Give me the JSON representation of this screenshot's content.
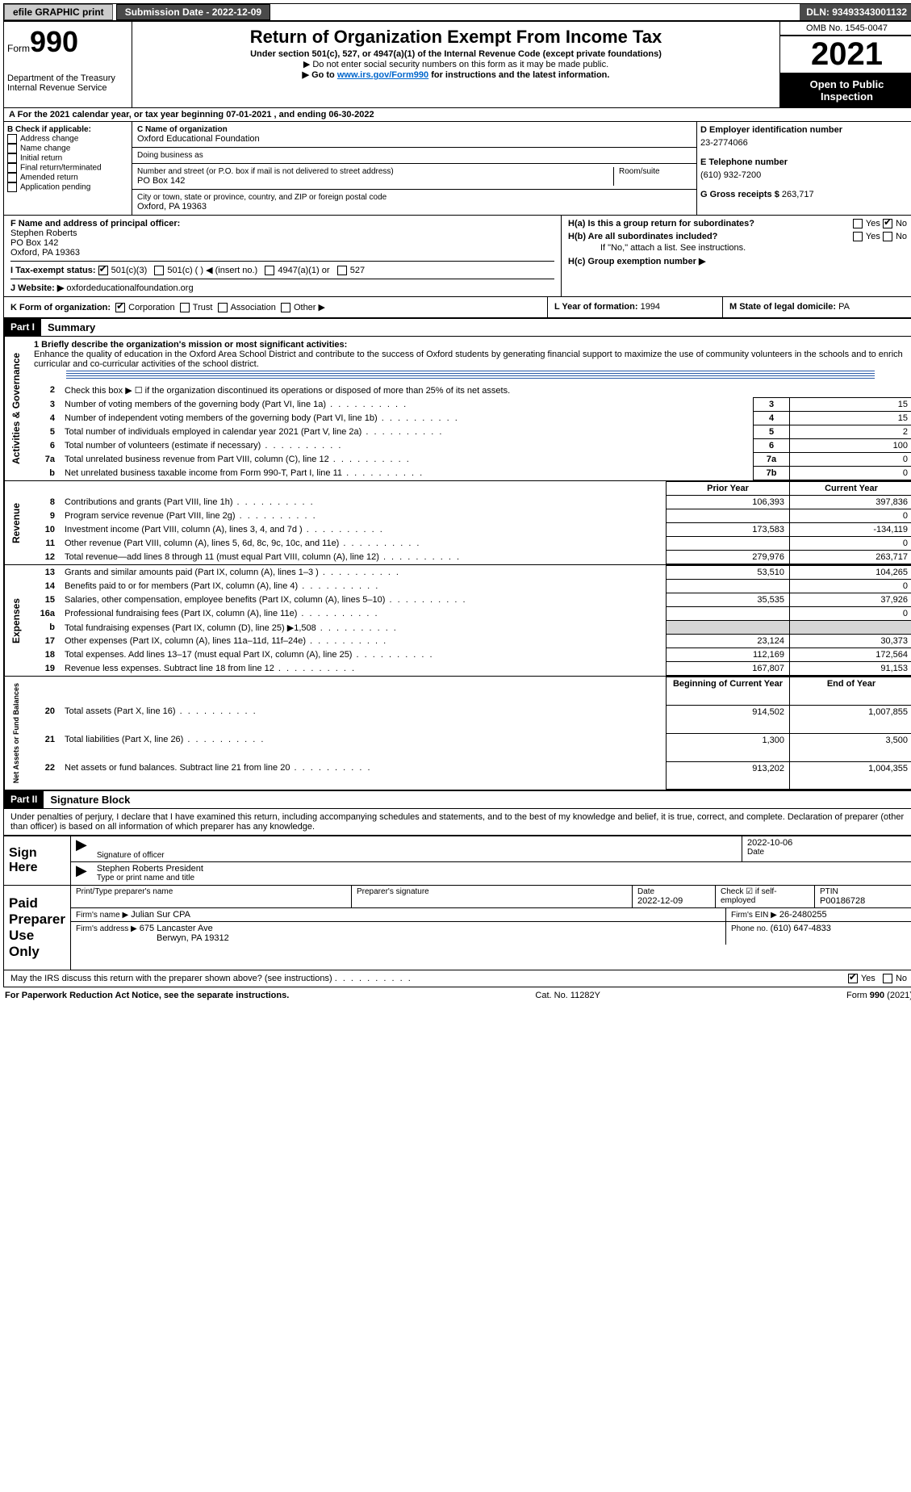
{
  "top_bar": {
    "efile": "efile GRAPHIC print",
    "submission_label": "Submission Date - 2022-12-09",
    "dln": "DLN: 93493343001132"
  },
  "header": {
    "form_word": "Form",
    "form_num": "990",
    "title": "Return of Organization Exempt From Income Tax",
    "subtitle": "Under section 501(c), 527, or 4947(a)(1) of the Internal Revenue Code (except private foundations)",
    "note1": "▶ Do not enter social security numbers on this form as it may be made public.",
    "note2_pre": "▶ Go to ",
    "note2_link": "www.irs.gov/Form990",
    "note2_post": " for instructions and the latest information.",
    "dept1": "Department of the Treasury",
    "dept2": "Internal Revenue Service",
    "omb": "OMB No. 1545-0047",
    "year": "2021",
    "open_pub": "Open to Public Inspection"
  },
  "line_a": "A For the 2021 calendar year, or tax year beginning 07-01-2021   , and ending 06-30-2022",
  "box_b": {
    "title": "B Check if applicable:",
    "items": [
      "Address change",
      "Name change",
      "Initial return",
      "Final return/terminated",
      "Amended return",
      "Application pending"
    ]
  },
  "box_c": {
    "label_name": "C Name of organization",
    "org_name": "Oxford Educational Foundation",
    "dba_label": "Doing business as",
    "dba": "",
    "addr_label": "Number and street (or P.O. box if mail is not delivered to street address)",
    "room_label": "Room/suite",
    "addr": "PO Box 142",
    "city_label": "City or town, state or province, country, and ZIP or foreign postal code",
    "city": "Oxford, PA  19363"
  },
  "box_d": {
    "label": "D Employer identification number",
    "ein": "23-2774066"
  },
  "box_e": {
    "label": "E Telephone number",
    "phone": "(610) 932-7200"
  },
  "box_g": {
    "label": "G Gross receipts $",
    "amount": "263,717"
  },
  "box_f": {
    "label": "F  Name and address of principal officer:",
    "name": "Stephen Roberts",
    "addr1": "PO Box 142",
    "addr2": "Oxford, PA  19363"
  },
  "box_h": {
    "a_label": "H(a)  Is this a group return for subordinates?",
    "a_yes": "Yes",
    "a_no": "No",
    "b_label": "H(b)  Are all subordinates included?",
    "b_yes": "Yes",
    "b_no": "No",
    "b_note": "If \"No,\" attach a list. See instructions.",
    "c_label": "H(c)  Group exemption number ▶"
  },
  "box_i": {
    "label": "I  Tax-exempt status:",
    "o1": "501(c)(3)",
    "o2": "501(c) (  ) ◀ (insert no.)",
    "o3": "4947(a)(1) or",
    "o4": "527"
  },
  "box_j": {
    "label": "J  Website: ▶",
    "url": "oxfordeducationalfoundation.org"
  },
  "box_k": {
    "label": "K Form of organization:",
    "o1": "Corporation",
    "o2": "Trust",
    "o3": "Association",
    "o4": "Other ▶"
  },
  "box_l": {
    "label": "L Year of formation:",
    "val": "1994"
  },
  "box_m": {
    "label": "M State of legal domicile:",
    "val": "PA"
  },
  "part1": {
    "hdr": "Part I",
    "title": "Summary"
  },
  "summary": {
    "q1_label": "1  Briefly describe the organization's mission or most significant activities:",
    "q1_text": "Enhance the quality of education in the Oxford Area School District and contribute to the success of Oxford students by generating financial support to maximize the use of community volunteers in the schools and to enrich curricular and co-curricular activities of the school district.",
    "q2": "Check this box ▶ ☐  if the organization discontinued its operations or disposed of more than 25% of its net assets.",
    "rows_ag": [
      {
        "n": "3",
        "t": "Number of voting members of the governing body (Part VI, line 1a)",
        "box": "3",
        "v": "15"
      },
      {
        "n": "4",
        "t": "Number of independent voting members of the governing body (Part VI, line 1b)",
        "box": "4",
        "v": "15"
      },
      {
        "n": "5",
        "t": "Total number of individuals employed in calendar year 2021 (Part V, line 2a)",
        "box": "5",
        "v": "2"
      },
      {
        "n": "6",
        "t": "Total number of volunteers (estimate if necessary)",
        "box": "6",
        "v": "100"
      },
      {
        "n": "7a",
        "t": "Total unrelated business revenue from Part VIII, column (C), line 12",
        "box": "7a",
        "v": "0"
      },
      {
        "n": "b",
        "t": "Net unrelated business taxable income from Form 990-T, Part I, line 11",
        "box": "7b",
        "v": "0"
      }
    ],
    "col_prior": "Prior Year",
    "col_curr": "Current Year",
    "revenue": [
      {
        "n": "8",
        "t": "Contributions and grants (Part VIII, line 1h)",
        "p": "106,393",
        "c": "397,836"
      },
      {
        "n": "9",
        "t": "Program service revenue (Part VIII, line 2g)",
        "p": "",
        "c": "0"
      },
      {
        "n": "10",
        "t": "Investment income (Part VIII, column (A), lines 3, 4, and 7d )",
        "p": "173,583",
        "c": "-134,119"
      },
      {
        "n": "11",
        "t": "Other revenue (Part VIII, column (A), lines 5, 6d, 8c, 9c, 10c, and 11e)",
        "p": "",
        "c": "0"
      },
      {
        "n": "12",
        "t": "Total revenue—add lines 8 through 11 (must equal Part VIII, column (A), line 12)",
        "p": "279,976",
        "c": "263,717"
      }
    ],
    "expenses": [
      {
        "n": "13",
        "t": "Grants and similar amounts paid (Part IX, column (A), lines 1–3 )",
        "p": "53,510",
        "c": "104,265"
      },
      {
        "n": "14",
        "t": "Benefits paid to or for members (Part IX, column (A), line 4)",
        "p": "",
        "c": "0"
      },
      {
        "n": "15",
        "t": "Salaries, other compensation, employee benefits (Part IX, column (A), lines 5–10)",
        "p": "35,535",
        "c": "37,926"
      },
      {
        "n": "16a",
        "t": "Professional fundraising fees (Part IX, column (A), line 11e)",
        "p": "",
        "c": "0"
      },
      {
        "n": "b",
        "t": "Total fundraising expenses (Part IX, column (D), line 25) ▶1,508",
        "p": "SHADE",
        "c": "SHADE"
      },
      {
        "n": "17",
        "t": "Other expenses (Part IX, column (A), lines 11a–11d, 11f–24e)",
        "p": "23,124",
        "c": "30,373"
      },
      {
        "n": "18",
        "t": "Total expenses. Add lines 13–17 (must equal Part IX, column (A), line 25)",
        "p": "112,169",
        "c": "172,564"
      },
      {
        "n": "19",
        "t": "Revenue less expenses. Subtract line 18 from line 12",
        "p": "167,807",
        "c": "91,153"
      }
    ],
    "col_begin": "Beginning of Current Year",
    "col_end": "End of Year",
    "netassets": [
      {
        "n": "20",
        "t": "Total assets (Part X, line 16)",
        "p": "914,502",
        "c": "1,007,855"
      },
      {
        "n": "21",
        "t": "Total liabilities (Part X, line 26)",
        "p": "1,300",
        "c": "3,500"
      },
      {
        "n": "22",
        "t": "Net assets or fund balances. Subtract line 21 from line 20",
        "p": "913,202",
        "c": "1,004,355"
      }
    ]
  },
  "side_labels": {
    "ag": "Activities & Governance",
    "rev": "Revenue",
    "exp": "Expenses",
    "na": "Net Assets or Fund Balances"
  },
  "part2": {
    "hdr": "Part II",
    "title": "Signature Block"
  },
  "penalties": "Under penalties of perjury, I declare that I have examined this return, including accompanying schedules and statements, and to the best of my knowledge and belief, it is true, correct, and complete. Declaration of preparer (other than officer) is based on all information of which preparer has any knowledge.",
  "sign": {
    "left": "Sign Here",
    "sig_line": "Signature of officer",
    "date": "2022-10-06",
    "date_label": "Date",
    "name": "Stephen Roberts  President",
    "name_label": "Type or print name and title"
  },
  "paid": {
    "left": "Paid Preparer Use Only",
    "h1": "Print/Type preparer's name",
    "h2": "Preparer's signature",
    "h3": "Date",
    "h3v": "2022-12-09",
    "h4": "Check ☑ if self-employed",
    "h5": "PTIN",
    "h5v": "P00186728",
    "firm_label": "Firm's name    ▶",
    "firm_name": "Julian Sur CPA",
    "ein_label": "Firm's EIN ▶",
    "ein": "26-2480255",
    "addr_label": "Firm's address ▶",
    "addr1": "675 Lancaster Ave",
    "addr2": "Berwyn, PA  19312",
    "phone_label": "Phone no.",
    "phone": "(610) 647-4833"
  },
  "discuss": {
    "text": "May the IRS discuss this return with the preparer shown above? (see instructions)",
    "yes": "Yes",
    "no": "No"
  },
  "footer": {
    "left": "For Paperwork Reduction Act Notice, see the separate instructions.",
    "mid": "Cat. No. 11282Y",
    "right": "Form 990 (2021)"
  }
}
